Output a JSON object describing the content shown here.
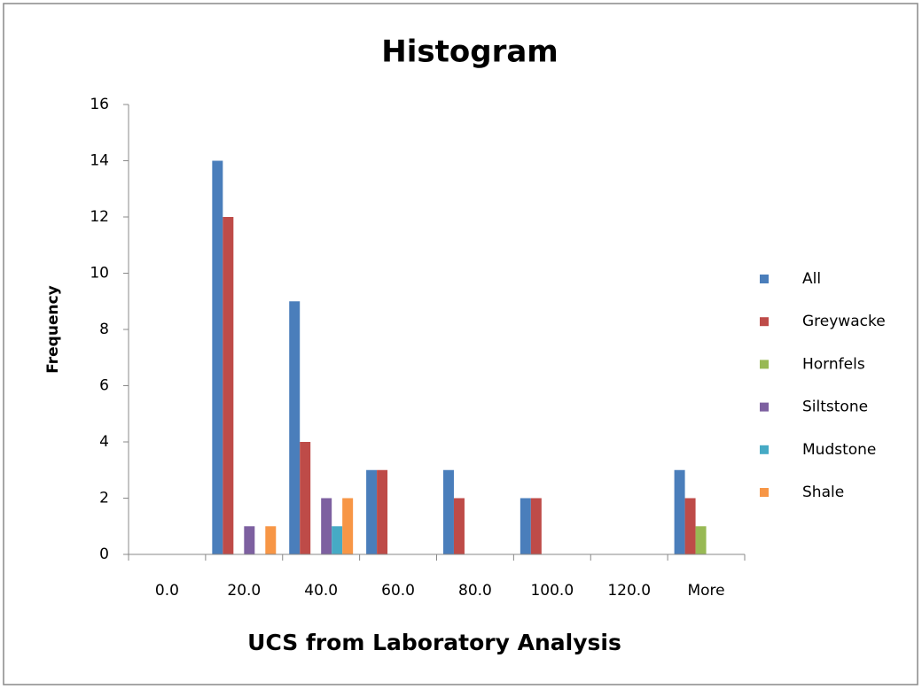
{
  "chart_data": {
    "type": "bar",
    "title": "Histogram",
    "x_label": "UCS from Laboratory Analysis",
    "y_label": "Frequency",
    "categories": [
      "0.0",
      "20.0",
      "40.0",
      "60.0",
      "80.0",
      "100.0",
      "120.0",
      "More"
    ],
    "series": [
      {
        "name": "All",
        "color": "#4a7ebb",
        "values": [
          0,
          14,
          9,
          3,
          3,
          2,
          0,
          3
        ]
      },
      {
        "name": "Greywacke",
        "color": "#be4b48",
        "values": [
          0,
          12,
          4,
          3,
          2,
          2,
          0,
          2
        ]
      },
      {
        "name": "Hornfels",
        "color": "#98b954",
        "values": [
          0,
          0,
          0,
          0,
          0,
          0,
          0,
          1
        ]
      },
      {
        "name": "Siltstone",
        "color": "#7d60a0",
        "values": [
          0,
          1,
          2,
          0,
          0,
          0,
          0,
          0
        ]
      },
      {
        "name": "Mudstone",
        "color": "#46aac5",
        "values": [
          0,
          0,
          1,
          0,
          0,
          0,
          0,
          0
        ]
      },
      {
        "name": "Shale",
        "color": "#f79646",
        "values": [
          0,
          1,
          2,
          0,
          0,
          0,
          0,
          0
        ]
      }
    ],
    "ylim": [
      0,
      16
    ],
    "yticks": [
      0,
      2,
      4,
      6,
      8,
      10,
      12,
      14,
      16
    ],
    "grid": false,
    "legend": "right"
  }
}
